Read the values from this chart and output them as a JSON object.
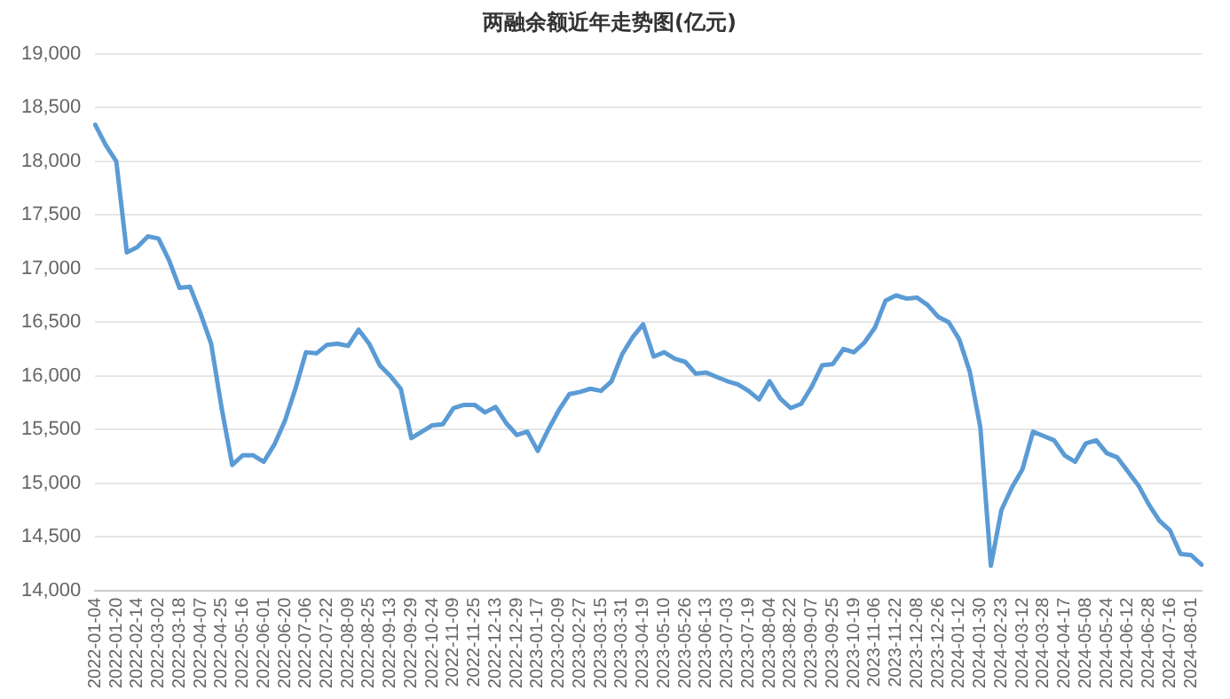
{
  "chart_data": {
    "type": "line",
    "title": "两融余额近年走势图(亿元)",
    "categories": [
      "2022-01-04",
      null,
      "2022-01-20",
      null,
      "2022-02-14",
      null,
      "2022-03-02",
      null,
      "2022-03-18",
      null,
      "2022-04-07",
      null,
      "2022-04-25",
      null,
      "2022-05-16",
      null,
      "2022-06-01",
      null,
      "2022-06-20",
      null,
      "2022-07-06",
      null,
      "2022-07-22",
      null,
      "2022-08-09",
      null,
      "2022-08-25",
      null,
      "2022-09-13",
      null,
      "2022-09-29",
      null,
      "2022-10-24",
      null,
      "2022-11-09",
      null,
      "2022-11-25",
      null,
      "2022-12-13",
      null,
      "2022-12-29",
      null,
      "2023-01-17",
      null,
      "2023-02-09",
      null,
      "2023-02-27",
      null,
      "2023-03-15",
      null,
      "2023-03-31",
      null,
      "2023-04-19",
      null,
      "2023-05-10",
      null,
      "2023-05-26",
      null,
      "2023-06-13",
      null,
      "2023-07-03",
      null,
      "2023-07-19",
      null,
      "2023-08-04",
      null,
      "2023-08-22",
      null,
      "2023-09-07",
      null,
      "2023-09-25",
      null,
      "2023-10-19",
      null,
      "2023-11-06",
      null,
      "2023-11-22",
      null,
      "2023-12-08",
      null,
      "2023-12-26",
      null,
      "2024-01-12",
      null,
      "2024-01-30",
      null,
      "2024-02-23",
      null,
      "2024-03-12",
      null,
      "2024-03-28",
      null,
      "2024-04-17",
      null,
      "2024-05-08",
      null,
      "2024-05-24",
      null,
      "2024-06-12",
      null,
      "2024-06-28",
      null,
      "2024-07-16",
      null,
      "2024-08-01",
      null
    ],
    "series": [
      {
        "color": "#5b9bd5",
        "values": [
          18340,
          18150,
          18000,
          17150,
          17200,
          17300,
          17280,
          17080,
          16820,
          16830,
          16580,
          16300,
          15700,
          15170,
          15260,
          15260,
          15200,
          15360,
          15580,
          15880,
          16220,
          16210,
          16290,
          16300,
          16280,
          16430,
          16300,
          16100,
          16000,
          15880,
          15420,
          15480,
          15540,
          15550,
          15700,
          15730,
          15730,
          15660,
          15710,
          15560,
          15450,
          15480,
          15300,
          15500,
          15680,
          15830,
          15850,
          15880,
          15860,
          15950,
          16200,
          16360,
          16480,
          16180,
          16220,
          16160,
          16130,
          16020,
          16030,
          15990,
          15950,
          15920,
          15860,
          15780,
          15950,
          15790,
          15700,
          15740,
          15900,
          16100,
          16110,
          16250,
          16220,
          16310,
          16450,
          16700,
          16750,
          16720,
          16730,
          16660,
          16550,
          16500,
          16340,
          16040,
          15520,
          14230,
          14750,
          14960,
          15130,
          15480,
          15440,
          15400,
          15260,
          15200,
          15370,
          15400,
          15280,
          15240,
          15110,
          14980,
          14800,
          14650,
          14560,
          14340,
          14330,
          14240
        ]
      }
    ],
    "ylim": [
      14000,
      19000
    ],
    "yticks": [
      {
        "value": 14000,
        "label": "14,000"
      },
      {
        "value": 14500,
        "label": "14,500"
      },
      {
        "value": 15000,
        "label": "15,000"
      },
      {
        "value": 15500,
        "label": "15,500"
      },
      {
        "value": 16000,
        "label": "16,000"
      },
      {
        "value": 16500,
        "label": "16,500"
      },
      {
        "value": 17000,
        "label": "17,000"
      },
      {
        "value": 17500,
        "label": "17,500"
      },
      {
        "value": 18000,
        "label": "18,000"
      },
      {
        "value": 18500,
        "label": "18,500"
      },
      {
        "value": 19000,
        "label": "19,000"
      }
    ],
    "grid": "y",
    "marker": "none",
    "line_style": "solid",
    "legend": false
  }
}
